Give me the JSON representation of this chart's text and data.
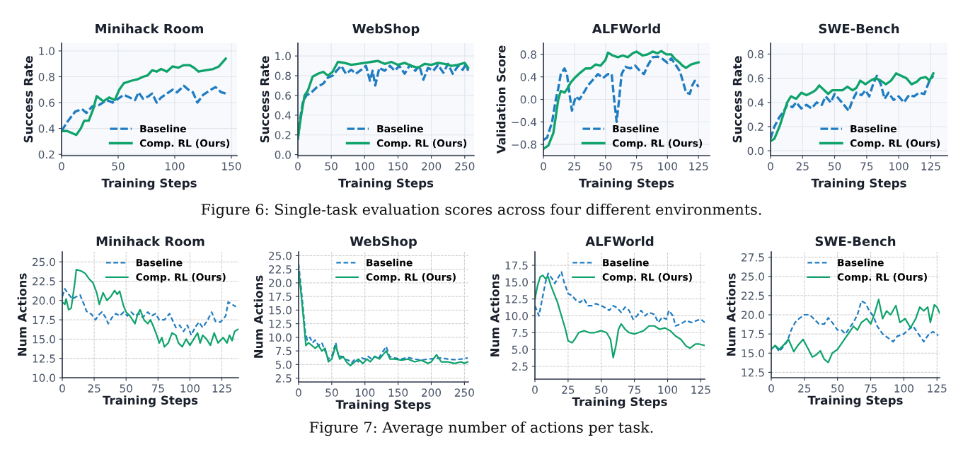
{
  "chart_data": [
    {
      "type": "line",
      "title": "Minihack Room",
      "xlabel": "Training Steps",
      "ylabel": "Success Rate",
      "xlim": [
        0,
        155
      ],
      "xticks": [
        0,
        50,
        100,
        150
      ],
      "ylim": [
        0.19,
        1.06
      ],
      "yticks": [
        0.2,
        0.4,
        0.6,
        0.8,
        {
          "value": 1,
          "label": "1.0"
        }
      ],
      "grid": true,
      "legend": "bottom right",
      "annotations": [
        "Figure 6: Single-task evaluation scores across four different environments."
      ],
      "series": [
        {
          "name": "Baseline",
          "color": "#1f7cc1",
          "line_style": "dashed",
          "x": [
            0,
            5,
            12,
            18,
            22,
            27,
            33,
            40,
            45,
            50,
            55,
            60,
            65,
            68,
            72,
            77,
            80,
            84,
            88,
            93,
            98,
            102,
            108,
            112,
            116,
            120,
            125,
            132,
            136,
            141,
            145
          ],
          "values": [
            0.38,
            0.45,
            0.53,
            0.55,
            0.52,
            0.57,
            0.58,
            0.62,
            0.6,
            0.63,
            0.66,
            0.64,
            0.62,
            0.68,
            0.63,
            0.65,
            0.67,
            0.6,
            0.64,
            0.67,
            0.7,
            0.68,
            0.73,
            0.7,
            0.68,
            0.6,
            0.66,
            0.7,
            0.72,
            0.68,
            0.67
          ]
        },
        {
          "name": "Comp. RL (Ours)",
          "color": "#0fa36b",
          "line_style": "solid",
          "x": [
            0,
            5,
            13,
            17,
            20,
            24,
            28,
            31,
            37,
            42,
            47,
            51,
            55,
            62,
            67,
            72,
            76,
            80,
            84,
            88,
            93,
            98,
            103,
            108,
            113,
            117,
            121,
            127,
            134,
            139,
            145
          ],
          "values": [
            0.38,
            0.38,
            0.35,
            0.4,
            0.46,
            0.46,
            0.55,
            0.65,
            0.61,
            0.64,
            0.62,
            0.7,
            0.75,
            0.77,
            0.78,
            0.8,
            0.81,
            0.85,
            0.84,
            0.86,
            0.84,
            0.88,
            0.87,
            0.89,
            0.89,
            0.87,
            0.84,
            0.85,
            0.86,
            0.88,
            0.94
          ]
        }
      ]
    },
    {
      "type": "line",
      "title": "WebShop",
      "xlabel": "Training Steps",
      "ylabel": "Success Rate",
      "xlim": [
        0,
        264
      ],
      "xticks": [
        0,
        50,
        100,
        150,
        200,
        250
      ],
      "ylim": [
        -0.01,
        1.13
      ],
      "yticks": [
        {
          "value": 0,
          "label": "0.0"
        },
        0.2,
        0.4,
        0.6,
        0.8,
        {
          "value": 1,
          "label": "1.0"
        }
      ],
      "grid": true,
      "legend": "bottom right",
      "series": [
        {
          "name": "Baseline",
          "color": "#1f7cc1",
          "line_style": "dashed",
          "x": [
            0,
            3,
            8,
            13,
            20,
            28,
            38,
            45,
            52,
            58,
            65,
            72,
            80,
            87,
            95,
            102,
            108,
            112,
            116,
            122,
            130,
            138,
            145,
            152,
            160,
            168,
            176,
            182,
            188,
            195,
            203,
            210,
            218,
            225,
            232,
            240,
            247,
            252,
            255
          ],
          "values": [
            0.15,
            0.35,
            0.55,
            0.6,
            0.63,
            0.68,
            0.72,
            0.78,
            0.8,
            0.85,
            0.9,
            0.82,
            0.86,
            0.82,
            0.86,
            0.9,
            0.75,
            0.85,
            0.7,
            0.88,
            0.85,
            0.9,
            0.85,
            0.9,
            0.82,
            0.91,
            0.85,
            0.9,
            0.76,
            0.88,
            0.85,
            0.91,
            0.83,
            0.92,
            0.82,
            0.9,
            0.86,
            0.92,
            0.85
          ]
        },
        {
          "name": "Comp. RL (Ours)",
          "color": "#0fa36b",
          "line_style": "solid",
          "x": [
            0,
            5,
            10,
            15,
            22,
            30,
            38,
            45,
            52,
            60,
            70,
            80,
            90,
            100,
            110,
            120,
            130,
            140,
            150,
            160,
            170,
            180,
            190,
            200,
            210,
            220,
            230,
            240,
            250,
            255
          ],
          "values": [
            0.17,
            0.4,
            0.6,
            0.65,
            0.79,
            0.82,
            0.84,
            0.8,
            0.84,
            0.94,
            0.93,
            0.91,
            0.92,
            0.93,
            0.94,
            0.95,
            0.92,
            0.94,
            0.91,
            0.93,
            0.9,
            0.88,
            0.92,
            0.91,
            0.93,
            0.92,
            0.9,
            0.91,
            0.93,
            0.88
          ]
        }
      ]
    },
    {
      "type": "line",
      "title": "ALFWorld",
      "xlabel": "Training Steps",
      "ylabel": "Validation Score",
      "xlim": [
        0,
        134
      ],
      "xticks": [
        0,
        25,
        50,
        75,
        100,
        125
      ],
      "ylim": [
        -1.0,
        1.0
      ],
      "yticks": [
        {
          "value": -0.8,
          "label": "−0.8"
        },
        {
          "value": -0.4,
          "label": "−0.4"
        },
        {
          "value": 0.0,
          "label": "0.0"
        },
        {
          "value": 0.4,
          "label": "0.4"
        },
        {
          "value": 0.8,
          "label": "0.8"
        }
      ],
      "grid": true,
      "legend": "bottom right",
      "series": [
        {
          "name": "Baseline",
          "color": "#1f7cc1",
          "line_style": "dashed",
          "x": [
            0,
            3,
            7,
            10,
            12,
            14,
            17,
            19,
            21,
            23,
            26,
            29,
            32,
            36,
            40,
            44,
            48,
            52,
            55,
            57,
            59,
            61,
            63,
            66,
            70,
            74,
            78,
            81,
            84,
            88,
            92,
            96,
            100,
            103,
            107,
            110,
            112,
            115,
            118,
            120,
            122,
            125
          ],
          "values": [
            -0.72,
            -0.68,
            -0.4,
            0.0,
            0.2,
            0.45,
            0.55,
            0.45,
            0.1,
            -0.2,
            0.05,
            0.0,
            0.1,
            0.25,
            0.35,
            0.45,
            0.38,
            0.45,
            0.45,
            0.0,
            -0.4,
            0.0,
            0.45,
            0.58,
            0.55,
            0.6,
            0.5,
            0.45,
            0.6,
            0.75,
            0.76,
            0.72,
            0.65,
            0.73,
            0.6,
            0.5,
            0.35,
            0.12,
            0.1,
            0.25,
            0.33,
            0.22
          ]
        },
        {
          "name": "Comp. RL (Ours)",
          "color": "#0fa36b",
          "line_style": "solid",
          "x": [
            0,
            4,
            8,
            10,
            12,
            14,
            17,
            19,
            22,
            26,
            30,
            34,
            38,
            42,
            46,
            50,
            52,
            56,
            60,
            64,
            68,
            72,
            75,
            80,
            84,
            88,
            92,
            95,
            99,
            103,
            106,
            110,
            112,
            115,
            119,
            122,
            125
          ],
          "values": [
            -0.88,
            -0.82,
            -0.6,
            -0.3,
            0.0,
            0.15,
            0.12,
            0.18,
            0.3,
            0.4,
            0.48,
            0.55,
            0.55,
            0.62,
            0.6,
            0.7,
            0.83,
            0.78,
            0.75,
            0.78,
            0.75,
            0.82,
            0.85,
            0.78,
            0.8,
            0.85,
            0.82,
            0.86,
            0.8,
            0.8,
            0.72,
            0.65,
            0.6,
            0.56,
            0.62,
            0.64,
            0.66
          ]
        }
      ]
    },
    {
      "type": "line",
      "title": "SWE-Bench",
      "xlabel": "Training Steps",
      "ylabel": "Success Rate",
      "xlim": [
        0,
        138
      ],
      "xticks": [
        0,
        25,
        50,
        75,
        100,
        125
      ],
      "ylim": [
        -0.04,
        0.89
      ],
      "yticks": [
        {
          "value": 0,
          "label": "0.0"
        },
        0.2,
        0.4,
        0.6,
        0.8
      ],
      "grid": true,
      "legend": "bottom right",
      "series": [
        {
          "name": "Baseline",
          "color": "#1f7cc1",
          "line_style": "dashed",
          "x": [
            0,
            3,
            7,
            10,
            13,
            17,
            20,
            24,
            28,
            32,
            36,
            40,
            43,
            47,
            50,
            54,
            58,
            61,
            64,
            67,
            71,
            74,
            77,
            80,
            83,
            86,
            89,
            92,
            96,
            100,
            104,
            108,
            112,
            116,
            120,
            124,
            127
          ],
          "values": [
            0.1,
            0.2,
            0.28,
            0.32,
            0.38,
            0.36,
            0.4,
            0.35,
            0.38,
            0.35,
            0.4,
            0.38,
            0.45,
            0.4,
            0.47,
            0.42,
            0.37,
            0.33,
            0.42,
            0.48,
            0.46,
            0.5,
            0.45,
            0.55,
            0.62,
            0.55,
            0.43,
            0.48,
            0.42,
            0.45,
            0.4,
            0.46,
            0.45,
            0.48,
            0.47,
            0.58,
            0.62
          ]
        },
        {
          "name": "Comp. RL (Ours)",
          "color": "#0fa36b",
          "line_style": "solid",
          "x": [
            0,
            3,
            7,
            10,
            13,
            16,
            20,
            24,
            28,
            32,
            35,
            38,
            42,
            45,
            48,
            52,
            56,
            60,
            64,
            67,
            70,
            74,
            78,
            82,
            86,
            90,
            94,
            98,
            102,
            106,
            110,
            114,
            117,
            121,
            124,
            127
          ],
          "values": [
            0.08,
            0.1,
            0.2,
            0.3,
            0.4,
            0.45,
            0.43,
            0.48,
            0.46,
            0.48,
            0.5,
            0.54,
            0.5,
            0.47,
            0.5,
            0.5,
            0.5,
            0.53,
            0.5,
            0.52,
            0.58,
            0.55,
            0.58,
            0.6,
            0.58,
            0.55,
            0.58,
            0.64,
            0.62,
            0.6,
            0.55,
            0.57,
            0.6,
            0.61,
            0.58,
            0.64
          ]
        }
      ]
    },
    {
      "type": "line",
      "title": "Minihack Room",
      "xlabel": "Training Steps",
      "ylabel": "Num Actions",
      "xlim": [
        0,
        138
      ],
      "xticks": [
        0,
        25,
        50,
        75,
        100,
        125
      ],
      "ylim": [
        10.0,
        26.3
      ],
      "yticks": [
        {
          "value": 10,
          "label": "10.0"
        },
        {
          "value": 12.5,
          "label": "12.5"
        },
        {
          "value": 15,
          "label": "15.0"
        },
        {
          "value": 17.5,
          "label": "17.5"
        },
        {
          "value": 20,
          "label": "20.0"
        },
        {
          "value": 22.5,
          "label": "22.5"
        },
        {
          "value": 25,
          "label": "25.0"
        }
      ],
      "grid": true,
      "legend": "top",
      "annotations": [
        "Figure 7: Average number of actions per task."
      ],
      "series": [
        {
          "name": "Baseline",
          "color": "#1f7cc1",
          "line_style": "dashed",
          "x": [
            0,
            2,
            5,
            8,
            11,
            14,
            17,
            19,
            23,
            26,
            29,
            31,
            34,
            36,
            39,
            42,
            45,
            48,
            51,
            54,
            57,
            60,
            63,
            67,
            70,
            73,
            76,
            80,
            84,
            87,
            89,
            92,
            95,
            98,
            101,
            104,
            107,
            110,
            114,
            117,
            120,
            124,
            128,
            130,
            133,
            136
          ],
          "values": [
            20.5,
            21.5,
            20.8,
            20.2,
            20.5,
            20.7,
            19.5,
            18.6,
            18.2,
            17.5,
            18.2,
            18.5,
            17.8,
            17.0,
            17.8,
            18.3,
            18.0,
            18.5,
            18.0,
            18.5,
            18.0,
            18.3,
            17.8,
            18.5,
            18.0,
            18.3,
            17.5,
            17.5,
            18.3,
            17.2,
            16.5,
            16.8,
            16.0,
            16.8,
            15.5,
            16.5,
            17.2,
            16.5,
            17.5,
            18.5,
            17.3,
            17.2,
            18.0,
            19.8,
            19.5,
            19.2
          ]
        },
        {
          "name": "Comp. RL (Ours)",
          "color": "#0fa36b",
          "line_style": "solid",
          "x": [
            0,
            2,
            3,
            5,
            7,
            10,
            11,
            15,
            18,
            21,
            24,
            27,
            29,
            30,
            32,
            35,
            38,
            41,
            43,
            45,
            48,
            50,
            53,
            55,
            57,
            59,
            61,
            64,
            67,
            69,
            71,
            74,
            76,
            78,
            80,
            83,
            86,
            89,
            91,
            94,
            97,
            100,
            103,
            106,
            108,
            110,
            113,
            116,
            119,
            122,
            126,
            129,
            131,
            133,
            135,
            138
          ],
          "values": [
            19.8,
            19.5,
            20.2,
            18.8,
            19.0,
            22.5,
            24.0,
            23.8,
            23.5,
            22.8,
            22.3,
            21.0,
            19.5,
            20.0,
            21.0,
            20.0,
            20.5,
            21.3,
            20.8,
            21.2,
            19.3,
            18.5,
            18.0,
            17.5,
            17.0,
            18.2,
            18.8,
            17.5,
            17.0,
            17.5,
            16.8,
            15.5,
            14.5,
            15.2,
            14.0,
            14.5,
            15.8,
            15.5,
            14.5,
            14.0,
            15.0,
            14.2,
            15.0,
            15.8,
            14.5,
            15.5,
            15.0,
            14.2,
            15.8,
            14.5,
            15.2,
            14.5,
            15.5,
            14.8,
            16.0,
            16.3
          ]
        }
      ]
    },
    {
      "type": "line",
      "title": "WebShop",
      "xlabel": "Training Steps",
      "ylabel": "Num Actions",
      "xlim": [
        0,
        256
      ],
      "xticks": [
        0,
        50,
        100,
        150,
        200,
        250
      ],
      "ylim": [
        1.8,
        25.7
      ],
      "yticks": [
        {
          "value": 2.5,
          "label": "2.5"
        },
        {
          "value": 5,
          "label": "5.0"
        },
        {
          "value": 7.5,
          "label": "7.5"
        },
        {
          "value": 10,
          "label": "10.0"
        },
        {
          "value": 12.5,
          "label": "12.5"
        },
        {
          "value": 15,
          "label": "15.0"
        },
        {
          "value": 17.5,
          "label": "17.5"
        },
        {
          "value": 20,
          "label": "20.0"
        },
        {
          "value": 22.5,
          "label": "22.5"
        },
        {
          "value": 25,
          "label": "25.0"
        }
      ],
      "grid": true,
      "legend": "top",
      "series": [
        {
          "name": "Baseline",
          "color": "#1f7cc1",
          "line_style": "dashed",
          "x": [
            0,
            3,
            7,
            10,
            13,
            17,
            21,
            25,
            30,
            35,
            40,
            45,
            50,
            56,
            60,
            65,
            70,
            75,
            80,
            85,
            90,
            95,
            100,
            105,
            110,
            115,
            120,
            125,
            132,
            137,
            145,
            155,
            165,
            175,
            185,
            195,
            205,
            215,
            225,
            235,
            245,
            255
          ],
          "values": [
            23.5,
            20,
            15,
            11,
            9.5,
            10,
            9,
            9.5,
            8.5,
            9,
            7.5,
            6.0,
            6.5,
            9.0,
            6.5,
            6.5,
            6.0,
            5.8,
            5.3,
            6.0,
            5.5,
            6.2,
            6.0,
            6.5,
            6.0,
            6.5,
            6.0,
            7.0,
            8.3,
            6.5,
            6.2,
            6.0,
            6.3,
            6.0,
            5.8,
            6.0,
            6.1,
            6.2,
            6.0,
            5.9,
            6.0,
            6.2
          ]
        },
        {
          "name": "Comp. RL (Ours)",
          "color": "#0fa36b",
          "line_style": "solid",
          "x": [
            0,
            3,
            7,
            11,
            15,
            20,
            25,
            30,
            35,
            40,
            45,
            50,
            56,
            62,
            67,
            72,
            78,
            85,
            90,
            97,
            103,
            108,
            115,
            122,
            132,
            138,
            145,
            155,
            165,
            175,
            185,
            195,
            200,
            208,
            215,
            225,
            235,
            245,
            250,
            255
          ],
          "values": [
            22.5,
            19,
            14,
            8.5,
            9.0,
            8.5,
            8.0,
            8.5,
            7.5,
            8.0,
            5.5,
            6.0,
            8.5,
            6.0,
            6.5,
            5.5,
            4.8,
            5.5,
            6.0,
            5.2,
            6.0,
            5.5,
            6.5,
            6.0,
            7.5,
            6.0,
            6.0,
            5.8,
            6.0,
            5.5,
            5.8,
            5.2,
            5.5,
            6.8,
            5.5,
            5.5,
            5.2,
            5.5,
            5.2,
            5.5
          ]
        }
      ]
    },
    {
      "type": "line",
      "title": "ALFWorld",
      "xlabel": "Training Steps",
      "ylabel": "Num Actions",
      "xlim": [
        0,
        128
      ],
      "xticks": [
        0,
        25,
        50,
        75,
        100,
        125
      ],
      "ylim": [
        0.6,
        19.5
      ],
      "yticks": [
        {
          "value": 2.5,
          "label": "2.5"
        },
        {
          "value": 5,
          "label": "5.0"
        },
        {
          "value": 7.5,
          "label": "7.5"
        },
        {
          "value": 10,
          "label": "10.0"
        },
        {
          "value": 12.5,
          "label": "12.5"
        },
        {
          "value": 15,
          "label": "15.0"
        },
        {
          "value": 17.5,
          "label": "17.5"
        }
      ],
      "grid": true,
      "legend": "top",
      "series": [
        {
          "name": "Baseline",
          "color": "#1f7cc1",
          "line_style": "dashed",
          "x": [
            0,
            3,
            5,
            8,
            10,
            13,
            15,
            17,
            20,
            22,
            25,
            28,
            31,
            34,
            37,
            40,
            43,
            46,
            50,
            53,
            56,
            59,
            62,
            65,
            68,
            71,
            74,
            77,
            80,
            83,
            86,
            90,
            93,
            96,
            99,
            101,
            104,
            106,
            110,
            114,
            118,
            122,
            125,
            128
          ],
          "values": [
            11.5,
            10,
            12,
            15,
            16.3,
            15.5,
            14.8,
            15.5,
            16.5,
            15.0,
            13.3,
            13.0,
            12.3,
            12.0,
            12.5,
            11.5,
            11.5,
            11.8,
            11.5,
            11.2,
            10.8,
            11.5,
            11.2,
            10.5,
            11.3,
            10.8,
            9.5,
            10.0,
            10.8,
            10.0,
            10.5,
            10.2,
            9.0,
            9.8,
            9.5,
            10.8,
            10.0,
            8.5,
            8.8,
            9.3,
            9.0,
            9.3,
            9.5,
            9.0
          ]
        },
        {
          "name": "Comp. RL (Ours)",
          "color": "#0fa36b",
          "line_style": "solid",
          "x": [
            0,
            2,
            4,
            6,
            8,
            10,
            12,
            14,
            17,
            20,
            23,
            25,
            28,
            30,
            33,
            37,
            41,
            45,
            50,
            54,
            57,
            59,
            61,
            63,
            65,
            68,
            71,
            75,
            78,
            82,
            86,
            90,
            94,
            98,
            102,
            106,
            110,
            114,
            117,
            121,
            124,
            128
          ],
          "values": [
            12.5,
            14.5,
            15.8,
            16.0,
            15.5,
            15.8,
            14.5,
            13.5,
            12.0,
            10.0,
            8.0,
            6.3,
            6.0,
            6.5,
            7.5,
            7.8,
            7.5,
            7.5,
            7.8,
            7.5,
            6.5,
            3.8,
            5.5,
            8.0,
            8.8,
            8.0,
            7.5,
            7.3,
            7.5,
            7.8,
            8.5,
            8.5,
            8.0,
            8.2,
            7.8,
            7.0,
            6.5,
            5.5,
            5.2,
            5.8,
            5.8,
            5.6
          ]
        }
      ]
    },
    {
      "type": "line",
      "title": "SWE-Bench",
      "xlabel": "Training Steps",
      "ylabel": "Num Actions",
      "xlim": [
        0,
        127
      ],
      "xticks": [
        0,
        25,
        50,
        75,
        100,
        125
      ],
      "ylim": [
        11.8,
        28.2
      ],
      "yticks": [
        {
          "value": 12.5,
          "label": "12.5"
        },
        {
          "value": 15,
          "label": "15.0"
        },
        {
          "value": 17.5,
          "label": "17.5"
        },
        {
          "value": 20,
          "label": "20.0"
        },
        {
          "value": 22.5,
          "label": "22.5"
        },
        {
          "value": 25,
          "label": "25.0"
        },
        {
          "value": 27.5,
          "label": "27.5"
        }
      ],
      "grid": true,
      "legend": "top",
      "series": [
        {
          "name": "Baseline",
          "color": "#1f7cc1",
          "line_style": "dashed",
          "x": [
            0,
            3,
            6,
            9,
            12,
            15,
            18,
            21,
            25,
            29,
            32,
            36,
            40,
            43,
            46,
            50,
            53,
            56,
            59,
            62,
            65,
            68,
            71,
            74,
            77,
            80,
            84,
            88,
            92,
            95,
            100,
            103,
            107,
            111,
            115,
            119,
            122,
            126
          ],
          "values": [
            15.5,
            16.0,
            15.2,
            15.8,
            16.5,
            18.0,
            19.0,
            19.5,
            20.0,
            20.0,
            19.5,
            18.8,
            18.8,
            19.6,
            19.0,
            18.0,
            18.0,
            17.5,
            18.3,
            19.0,
            20.0,
            21.8,
            21.5,
            20.5,
            19.8,
            18.5,
            17.5,
            17.0,
            16.5,
            17.2,
            17.5,
            18.0,
            18.5,
            17.5,
            16.5,
            17.5,
            17.8,
            17.3
          ]
        },
        {
          "name": "Comp. RL (Ours)",
          "color": "#0fa36b",
          "line_style": "solid",
          "x": [
            0,
            3,
            6,
            9,
            13,
            17,
            20,
            24,
            28,
            31,
            34,
            37,
            40,
            43,
            46,
            50,
            54,
            58,
            62,
            65,
            68,
            72,
            75,
            78,
            81,
            84,
            87,
            90,
            94,
            97,
            101,
            105,
            109,
            112,
            115,
            118,
            120,
            123,
            125,
            127
          ],
          "values": [
            15.5,
            16.0,
            15.5,
            16.0,
            16.8,
            15.2,
            16.0,
            16.8,
            15.5,
            14.5,
            14.8,
            15.3,
            14.2,
            13.8,
            15.0,
            15.5,
            16.5,
            17.5,
            18.5,
            18.0,
            19.0,
            19.5,
            18.8,
            20.2,
            22.0,
            19.5,
            20.5,
            20.0,
            21.2,
            19.0,
            19.5,
            18.3,
            19.5,
            21.0,
            20.5,
            21.0,
            19.0,
            21.3,
            21.0,
            20.2
          ]
        }
      ]
    }
  ]
}
